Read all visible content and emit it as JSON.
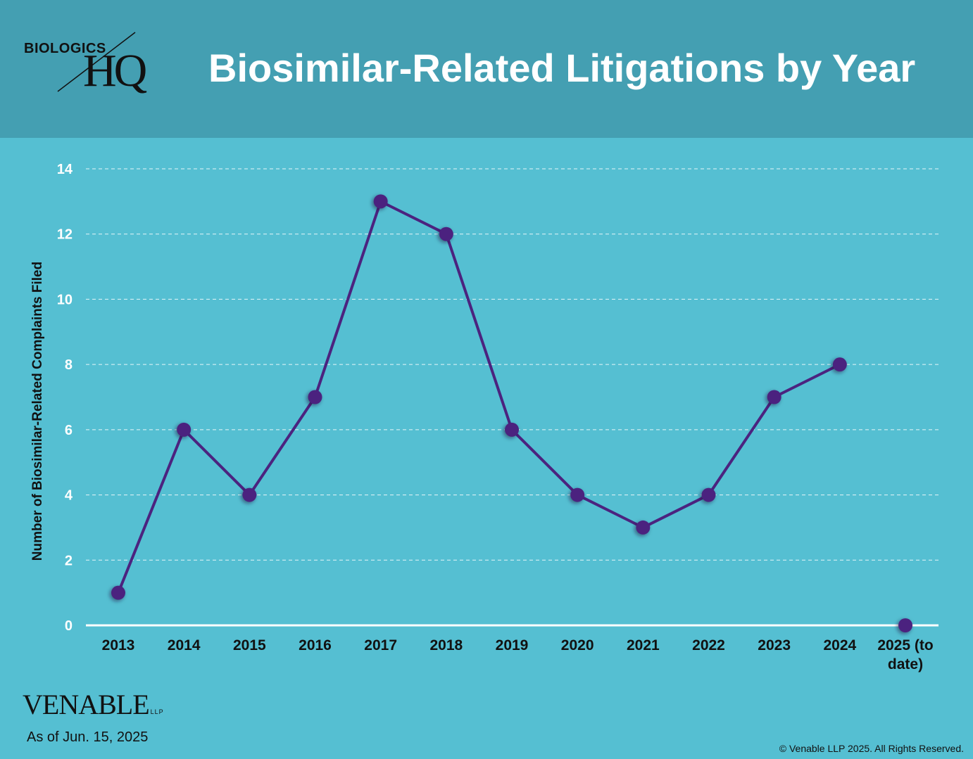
{
  "header": {
    "logo_top": "BIOLOGICS",
    "logo_main": "HQ",
    "title": "Biosimilar-Related Litigations by Year"
  },
  "chart_data": {
    "type": "line",
    "title": "Biosimilar-Related Litigations by Year",
    "xlabel": "",
    "ylabel": "Number of Biosimilar-Related Complaints Filed",
    "categories": [
      "2013",
      "2014",
      "2015",
      "2016",
      "2017",
      "2018",
      "2019",
      "2020",
      "2021",
      "2022",
      "2023",
      "2024",
      "2025 (to date)"
    ],
    "series": [
      {
        "values": [
          1,
          6,
          4,
          7,
          13,
          12,
          6,
          4,
          3,
          4,
          7,
          8,
          0
        ],
        "color": "#4b237f",
        "line_segments_to_index": 11
      }
    ],
    "ylim": [
      0,
      14
    ],
    "yticks": [
      0,
      2,
      4,
      6,
      8,
      10,
      12,
      14
    ],
    "grid": "horizontal-dashed",
    "legend": "none"
  },
  "footer": {
    "brand": "VENABLE",
    "brand_suffix": "LLP",
    "as_of": "As of Jun. 15, 2025",
    "copyright": "© Venable LLP 2025. All Rights Reserved."
  },
  "colors": {
    "background": "#55bfd2",
    "header_band": "#449fb2",
    "line": "#4b237f",
    "grid": "#ffffff"
  }
}
